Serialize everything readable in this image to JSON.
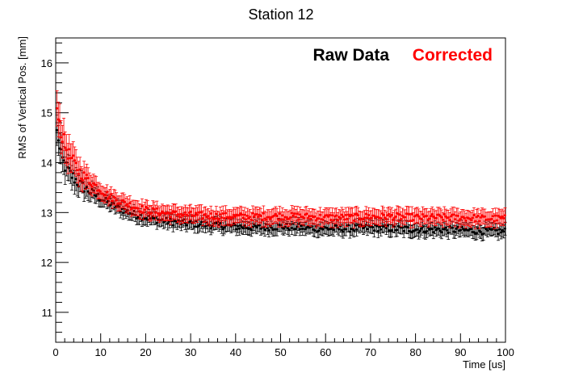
{
  "chart_data": {
    "type": "scatter",
    "title": "Station 12",
    "xlabel": "Time [us]",
    "ylabel": "RMS of Vertical Pos. [mm]",
    "xlim": [
      0,
      100
    ],
    "ylim": [
      10.4,
      16.5
    ],
    "x_ticks": [
      0,
      10,
      20,
      30,
      40,
      50,
      60,
      70,
      80,
      90,
      100
    ],
    "y_ticks": [
      11,
      12,
      13,
      14,
      15,
      16
    ],
    "grid": false,
    "legend_position": "top-right",
    "series": [
      {
        "name": "Raw Data",
        "color": "#000000",
        "x": [
          0.5,
          1,
          2,
          3,
          4,
          5,
          6,
          8,
          10,
          12,
          15,
          18,
          20,
          25,
          30,
          35,
          40,
          45,
          50,
          55,
          60,
          65,
          70,
          75,
          80,
          85,
          90,
          95,
          100
        ],
        "y": [
          14.6,
          14.15,
          13.95,
          13.8,
          13.7,
          13.6,
          13.52,
          13.4,
          13.28,
          13.18,
          13.05,
          12.95,
          12.9,
          12.82,
          12.78,
          12.75,
          12.72,
          12.7,
          12.72,
          12.7,
          12.68,
          12.68,
          12.7,
          12.68,
          12.66,
          12.66,
          12.65,
          12.63,
          12.62
        ],
        "error": 0.13
      },
      {
        "name": "Corrected",
        "color": "#ff0000",
        "x": [
          0.5,
          1,
          2,
          3,
          4,
          5,
          6,
          8,
          10,
          12,
          15,
          18,
          20,
          25,
          30,
          35,
          40,
          45,
          50,
          55,
          60,
          65,
          70,
          75,
          80,
          85,
          90,
          95,
          100
        ],
        "y": [
          15.1,
          14.7,
          14.35,
          14.15,
          14.0,
          13.85,
          13.75,
          13.6,
          13.45,
          13.32,
          13.2,
          13.1,
          13.05,
          12.98,
          12.95,
          12.93,
          12.92,
          12.92,
          12.93,
          12.92,
          12.9,
          12.9,
          12.92,
          12.92,
          12.9,
          12.9,
          12.9,
          12.88,
          12.88
        ],
        "error": 0.15
      }
    ]
  }
}
